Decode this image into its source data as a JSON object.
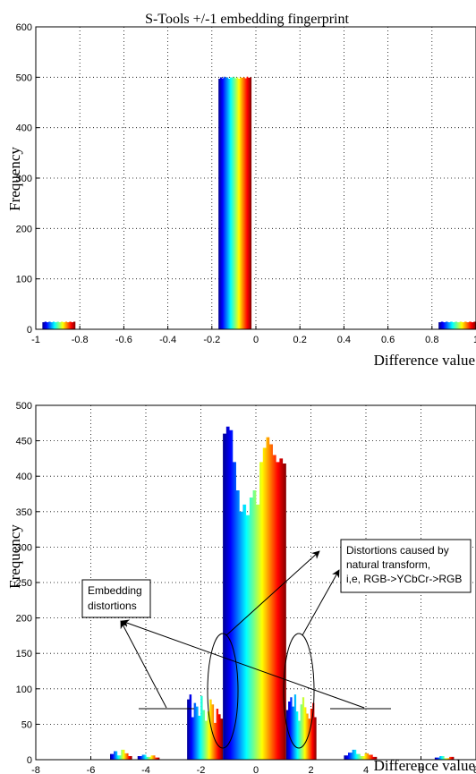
{
  "chart_data": [
    {
      "type": "bar",
      "title": "S-Tools +/-1 embedding fingerprint",
      "xlabel": "Difference value",
      "ylabel": "Frequency",
      "xlim": [
        -1,
        1
      ],
      "ylim": [
        0,
        600
      ],
      "xticks": [
        "-1",
        "-0.8",
        "-0.6",
        "-0.4",
        "-0.2",
        "0",
        "0.2",
        "0.4",
        "0.6",
        "0.8",
        "1"
      ],
      "yticks": [
        "0",
        "100",
        "200",
        "300",
        "400",
        "500",
        "600"
      ],
      "grid": true,
      "bars": [
        {
          "x0": -0.97,
          "x1": -0.82,
          "values": [
            14,
            15,
            14,
            15,
            14,
            15,
            14,
            15,
            14,
            15,
            14,
            15,
            14,
            15,
            14,
            15
          ]
        },
        {
          "x0": -0.17,
          "x1": -0.02,
          "values": [
            497,
            500,
            498,
            501,
            499,
            500,
            497,
            500,
            499,
            501,
            498,
            500,
            497,
            500,
            499,
            500,
            498,
            501,
            499,
            500
          ]
        },
        {
          "x0": 0.83,
          "x1": 1.0,
          "values": [
            14,
            15,
            14,
            15,
            14,
            15,
            14,
            15,
            14,
            15,
            14,
            15,
            14,
            15,
            14,
            15
          ]
        }
      ]
    },
    {
      "type": "bar",
      "title": "",
      "xlabel": "Difference value",
      "ylabel": "Frequency",
      "xlim": [
        -8,
        8
      ],
      "ylim": [
        0,
        500
      ],
      "xticks": [
        "-8",
        "-6",
        "-4",
        "-2",
        "0",
        "2",
        "4",
        "6",
        "8"
      ],
      "yticks": [
        "0",
        "50",
        "100",
        "150",
        "200",
        "250",
        "300",
        "350",
        "400",
        "450",
        "500"
      ],
      "grid": true,
      "bars": [
        {
          "x0": -5.3,
          "x1": -4.5,
          "values": [
            8,
            12,
            6,
            14,
            9,
            5
          ]
        },
        {
          "x0": -4.3,
          "x1": -3.5,
          "values": [
            5,
            7,
            4,
            6,
            3
          ]
        },
        {
          "x0": -2.5,
          "x1": -1.2,
          "values": [
            85,
            92,
            60,
            80,
            75,
            62,
            90,
            70,
            55,
            68,
            85,
            78,
            52,
            72,
            64,
            58
          ]
        },
        {
          "x0": -1.2,
          "x1": 1.1,
          "values": [
            460,
            470,
            465,
            420,
            380,
            350,
            360,
            345,
            370,
            380,
            360,
            420,
            440,
            455,
            445,
            430,
            420,
            425,
            418
          ]
        },
        {
          "x0": 1.1,
          "x1": 2.2,
          "values": [
            70,
            82,
            88,
            75,
            92,
            68,
            55,
            78,
            88,
            74,
            65,
            58,
            72,
            80,
            60
          ]
        },
        {
          "x0": 3.2,
          "x1": 4.4,
          "values": [
            6,
            10,
            14,
            8,
            5,
            9,
            7,
            4
          ]
        },
        {
          "x0": 6.5,
          "x1": 7.2,
          "values": [
            3,
            5,
            2,
            4
          ]
        }
      ],
      "annotations": [
        {
          "text": [
            "Embedding",
            "distortions"
          ]
        },
        {
          "text": [
            "Distortions caused by",
            "natural transform,",
            "i,e, RGB->YCbCr->RGB"
          ]
        }
      ]
    }
  ]
}
